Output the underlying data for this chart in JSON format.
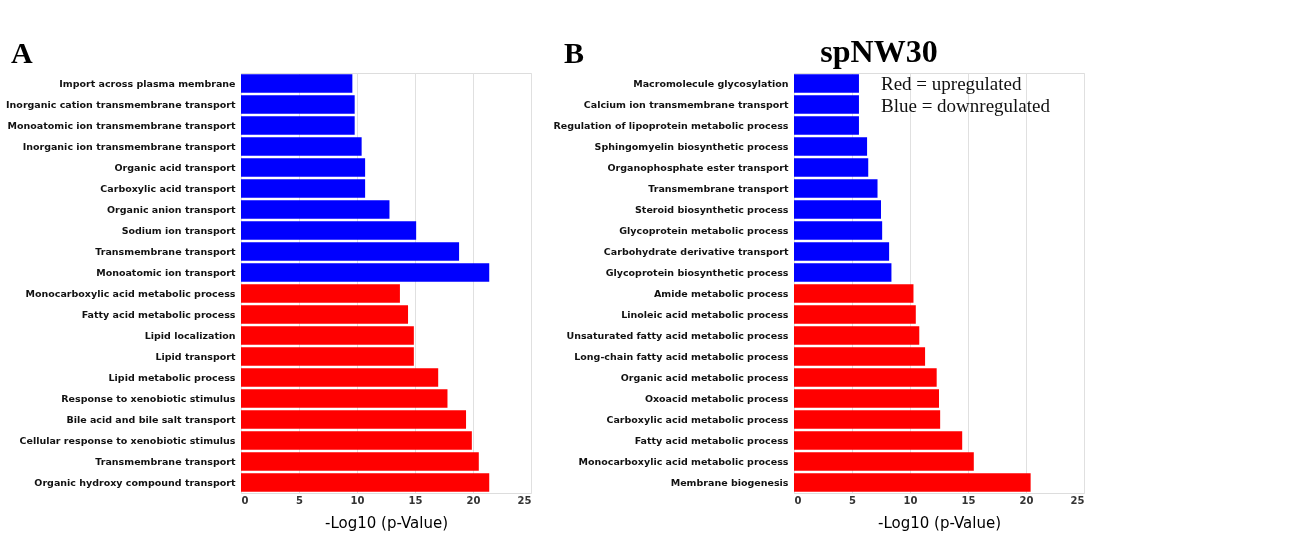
{
  "chart_data": [
    {
      "type": "bar",
      "orientation": "horizontal",
      "title": "A",
      "xlabel": "-Log10 (p-Value)",
      "categories": [
        "Import across plasma membrane",
        "Inorganic cation transmembrane transport",
        "Monoatomic ion transmembrane transport",
        "Inorganic ion transmembrane transport",
        "Organic acid transport",
        "Carboxylic acid transport",
        "Organic anion transport",
        "Sodium ion transport",
        "Transmembrane transport",
        "Monoatomic ion transport",
        "Monocarboxylic acid metabolic process",
        "Fatty acid metabolic process",
        "Lipid localization",
        "Lipid transport",
        "Lipid metabolic process",
        "Response to xenobiotic stimulus",
        "Bile acid and bile salt transport",
        "Cellular response to xenobiotic stimulus",
        "Transmembrane transport",
        "Organic hydroxy compound transport"
      ],
      "values": [
        9.6,
        9.8,
        9.8,
        10.4,
        10.7,
        10.7,
        12.8,
        15.1,
        18.8,
        21.4,
        13.7,
        14.4,
        14.9,
        14.9,
        17.0,
        17.8,
        19.4,
        19.9,
        20.5,
        21.4
      ],
      "colors": [
        "#0000ff",
        "#0000ff",
        "#0000ff",
        "#0000ff",
        "#0000ff",
        "#0000ff",
        "#0000ff",
        "#0000ff",
        "#0000ff",
        "#0000ff",
        "#ff0000",
        "#ff0000",
        "#ff0000",
        "#ff0000",
        "#ff0000",
        "#ff0000",
        "#ff0000",
        "#ff0000",
        "#ff0000",
        "#ff0000"
      ],
      "xlim": [
        0,
        25
      ],
      "xticks": [
        0,
        5,
        10,
        15,
        20,
        25
      ],
      "grid": "x"
    },
    {
      "type": "bar",
      "orientation": "horizontal",
      "title": "B",
      "subtitle": "spNW30",
      "xlabel": "-Log10 (p-Value)",
      "categories": [
        "Macromolecule glycosylation",
        "Calcium ion transmembrane transport",
        "Regulation of lipoprotein metabolic process",
        "Sphingomyelin biosynthetic process",
        "Organophosphate ester transport",
        "Transmembrane transport",
        "Steroid biosynthetic process",
        "Glycoprotein metabolic process",
        "Carbohydrate derivative transport",
        "Glycoprotein biosynthetic process",
        "Amide metabolic process",
        "Linoleic acid metabolic process",
        "Unsaturated fatty acid metabolic process",
        "Long-chain fatty acid metabolic process",
        "Organic acid metabolic process",
        "Oxoacid metabolic process",
        "Carboxylic acid metabolic process",
        "Fatty acid metabolic process",
        "Monocarboxylic acid metabolic process",
        "Membrane biogenesis"
      ],
      "values": [
        5.6,
        5.6,
        5.6,
        6.3,
        6.4,
        7.2,
        7.5,
        7.6,
        8.2,
        8.4,
        10.3,
        10.5,
        10.8,
        11.3,
        12.3,
        12.5,
        12.6,
        14.5,
        15.5,
        20.4
      ],
      "colors": [
        "#0000ff",
        "#0000ff",
        "#0000ff",
        "#0000ff",
        "#0000ff",
        "#0000ff",
        "#0000ff",
        "#0000ff",
        "#0000ff",
        "#0000ff",
        "#ff0000",
        "#ff0000",
        "#ff0000",
        "#ff0000",
        "#ff0000",
        "#ff0000",
        "#ff0000",
        "#ff0000",
        "#ff0000",
        "#ff0000"
      ],
      "xlim": [
        0,
        25
      ],
      "xticks": [
        0,
        5,
        10,
        15,
        20,
        25
      ],
      "grid": "x",
      "annotations": [
        "Red = upregulated",
        "Blue = downregulated"
      ]
    }
  ]
}
